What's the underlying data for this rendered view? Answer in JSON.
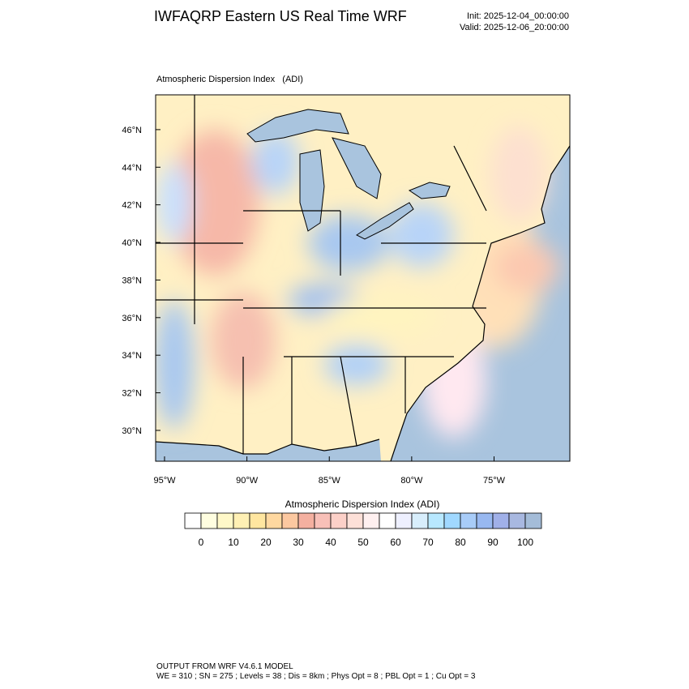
{
  "header": {
    "title": "IWFAQRP Eastern US Real Time WRF",
    "init": "Init: 2025-12-04_00:00:00",
    "valid": "Valid: 2025-12-06_20:00:00"
  },
  "map": {
    "title": "Atmospheric Dispersion Index   (ADI)",
    "xlim": [
      -95.54,
      -70.4
    ],
    "ylim": [
      28.36,
      47.85
    ],
    "xticks": [
      {
        "value": -95,
        "label": "95°W"
      },
      {
        "value": -90,
        "label": "90°W"
      },
      {
        "value": -85,
        "label": "85°W"
      },
      {
        "value": -80,
        "label": "80°W"
      },
      {
        "value": -75,
        "label": "75°W"
      }
    ],
    "yticks": [
      {
        "value": 30,
        "label": "30°N"
      },
      {
        "value": 32,
        "label": "32°N"
      },
      {
        "value": 34,
        "label": "34°N"
      },
      {
        "value": 36,
        "label": "36°N"
      },
      {
        "value": 38,
        "label": "38°N"
      },
      {
        "value": 40,
        "label": "40°N"
      },
      {
        "value": 42,
        "label": "42°N"
      },
      {
        "value": 44,
        "label": "44°N"
      },
      {
        "value": 46,
        "label": "46°N"
      }
    ]
  },
  "colorbar": {
    "title": "Atmospheric Dispersion Index (ADI)",
    "range": [
      -5,
      105
    ],
    "ticks": [
      0,
      10,
      20,
      30,
      40,
      50,
      60,
      70,
      80,
      90,
      100
    ],
    "colors": [
      "#ffffff",
      "#fffee0",
      "#fff8c8",
      "#fff0b4",
      "#ffe6a0",
      "#ffd8a0",
      "#fcc8a0",
      "#f4b0a0",
      "#f8c0b8",
      "#fcd0c8",
      "#fde0d8",
      "#fff0f0",
      "#ffffff",
      "#eef0ff",
      "#d8eefc",
      "#b8e8ff",
      "#a0d8ff",
      "#a8ccf8",
      "#98b8f0",
      "#a0b0e8",
      "#a8b8e0",
      "#a4bcd8"
    ]
  },
  "footer": {
    "line1": "OUTPUT FROM WRF V4.6.1 MODEL",
    "line2": "WE = 310 ; SN = 275 ; Levels = 38 ; Dis = 8km ; Phys Opt = 8 ; PBL Opt = 1 ; Cu Opt = 3"
  }
}
